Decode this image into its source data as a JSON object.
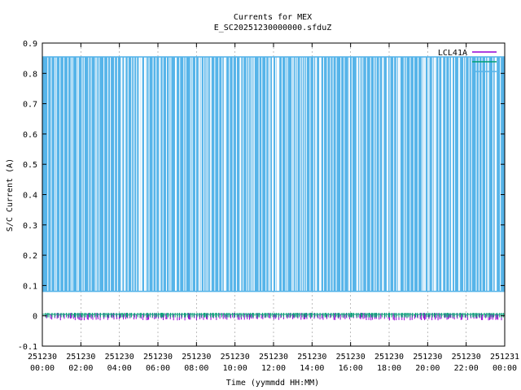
{
  "chart_data": {
    "type": "line",
    "title": "Currents for MEX",
    "subtitle": "E_SC20251230000000.sfduZ",
    "xlabel": "Time (yymmdd HH:MM)",
    "ylabel": "S/C Current (A)",
    "ylim": [
      -0.1,
      0.9
    ],
    "xlim_hours": [
      0,
      24
    ],
    "y_ticks": [
      "-0.1",
      "0",
      "0.1",
      "0.2",
      "0.3",
      "0.4",
      "0.5",
      "0.6",
      "0.7",
      "0.8",
      "0.9"
    ],
    "x_ticks": [
      {
        "date": "251230",
        "time": "00:00"
      },
      {
        "date": "251230",
        "time": "02:00"
      },
      {
        "date": "251230",
        "time": "04:00"
      },
      {
        "date": "251230",
        "time": "06:00"
      },
      {
        "date": "251230",
        "time": "08:00"
      },
      {
        "date": "251230",
        "time": "10:00"
      },
      {
        "date": "251230",
        "time": "12:00"
      },
      {
        "date": "251230",
        "time": "14:00"
      },
      {
        "date": "251230",
        "time": "16:00"
      },
      {
        "date": "251230",
        "time": "18:00"
      },
      {
        "date": "251230",
        "time": "20:00"
      },
      {
        "date": "251230",
        "time": "22:00"
      },
      {
        "date": "251231",
        "time": "00:00"
      }
    ],
    "grid": true,
    "legend_position": "top-right",
    "series": [
      {
        "name": "LCL41A",
        "color": "#9400d3",
        "low": -0.01,
        "high": 0.01
      },
      {
        "name": "",
        "color": "#009e73",
        "low": -0.005,
        "high": 0.01
      },
      {
        "name": "",
        "color": "#56b4e9",
        "low": 0.08,
        "high": 0.855
      }
    ]
  }
}
